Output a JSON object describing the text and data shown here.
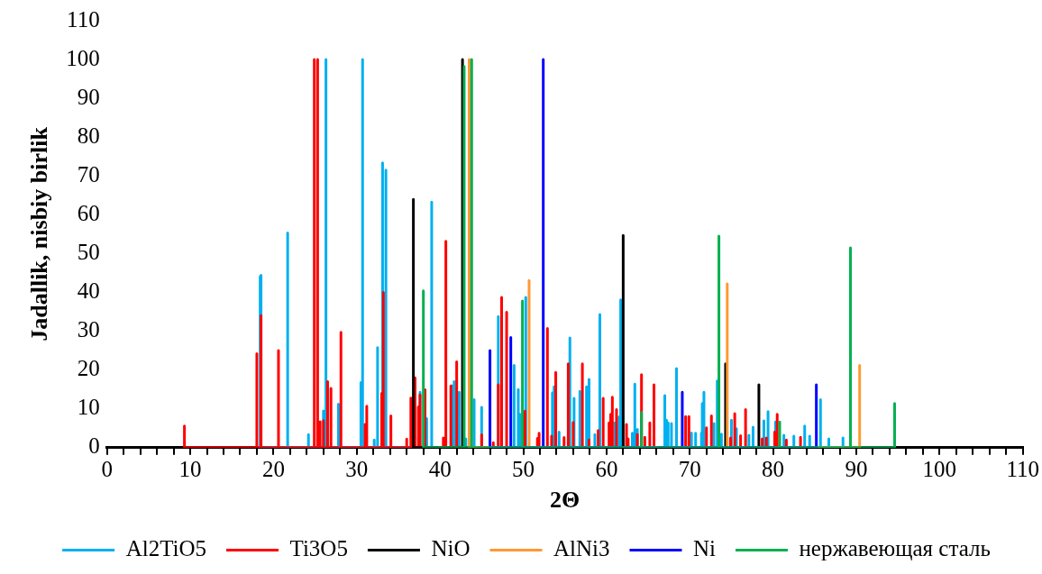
{
  "chart_data": {
    "type": "line",
    "xlabel": "2Θ",
    "ylabel": "Jadallik, nisbiy birlik",
    "xlim": [
      0,
      110
    ],
    "ylim": [
      0,
      110
    ],
    "xticks": [
      0,
      {
        "value": 2,
        "label": null
      },
      {
        "value": 4,
        "label": null
      },
      {
        "value": 6,
        "label": null
      },
      {
        "value": 8,
        "label": null
      },
      10,
      {
        "value": 12,
        "label": null
      },
      {
        "value": 14,
        "label": null
      },
      {
        "value": 16,
        "label": null
      },
      {
        "value": 18,
        "label": null
      },
      20,
      {
        "value": 22,
        "label": null
      },
      {
        "value": 24,
        "label": null
      },
      {
        "value": 26,
        "label": null
      },
      {
        "value": 28,
        "label": null
      },
      30,
      {
        "value": 32,
        "label": null
      },
      {
        "value": 34,
        "label": null
      },
      {
        "value": 36,
        "label": null
      },
      {
        "value": 38,
        "label": null
      },
      40,
      {
        "value": 42,
        "label": null
      },
      {
        "value": 44,
        "label": null
      },
      {
        "value": 46,
        "label": null
      },
      {
        "value": 48,
        "label": null
      },
      50,
      {
        "value": 52,
        "label": null
      },
      {
        "value": 54,
        "label": null
      },
      {
        "value": 56,
        "label": null
      },
      {
        "value": 58,
        "label": null
      },
      60,
      {
        "value": 62,
        "label": null
      },
      {
        "value": 64,
        "label": null
      },
      {
        "value": 66,
        "label": null
      },
      {
        "value": 68,
        "label": null
      },
      70,
      {
        "value": 72,
        "label": null
      },
      {
        "value": 74,
        "label": null
      },
      {
        "value": 76,
        "label": null
      },
      {
        "value": 78,
        "label": null
      },
      80,
      {
        "value": 82,
        "label": null
      },
      {
        "value": 84,
        "label": null
      },
      {
        "value": 86,
        "label": null
      },
      {
        "value": 88,
        "label": null
      },
      90,
      {
        "value": 92,
        "label": null
      },
      {
        "value": 94,
        "label": null
      },
      {
        "value": 96,
        "label": null
      },
      {
        "value": 98,
        "label": null
      },
      100,
      {
        "value": 102,
        "label": null
      },
      {
        "value": 104,
        "label": null
      },
      {
        "value": 106,
        "label": null
      },
      {
        "value": 108,
        "label": null
      },
      110
    ],
    "yticks": [
      0,
      10,
      20,
      30,
      40,
      50,
      60,
      70,
      80,
      90,
      100,
      110
    ],
    "grid": false,
    "legend": "bottom",
    "marker": "none",
    "series": [
      {
        "name": "Al2TiO5",
        "color": "#00b0f0",
        "x": [
          18.4,
          18.4,
          18.4,
          18.5,
          18.5,
          18.5,
          21.7,
          21.7,
          21.7,
          24.2,
          24.2,
          24.2,
          26.0,
          26.0,
          26.0,
          26.3,
          26.3,
          26.3,
          27.8,
          27.8,
          27.8,
          30.5,
          30.5,
          30.5,
          30.7,
          30.7,
          30.7,
          32.1,
          32.1,
          32.1,
          32.5,
          32.5,
          32.5,
          33.1,
          33.1,
          33.1,
          33.5,
          33.5,
          33.5,
          37.6,
          37.6,
          37.6,
          38.4,
          38.4,
          38.4,
          39.0,
          39.0,
          39.0,
          41.4,
          41.4,
          41.4,
          41.7,
          41.7,
          41.7,
          42.3,
          42.3,
          42.3,
          43.1,
          43.1,
          43.1,
          44.1,
          44.1,
          44.1,
          45.0,
          45.0,
          45.0,
          47.0,
          47.0,
          47.0,
          48.9,
          48.9,
          48.9,
          49.4,
          49.4,
          49.4,
          49.6,
          49.6,
          49.6,
          50.3,
          50.3,
          50.3,
          53.5,
          53.5,
          53.5,
          53.7,
          53.7,
          53.7,
          54.3,
          54.3,
          54.3,
          55.6,
          55.6,
          55.6,
          56.1,
          56.1,
          56.1,
          56.8,
          56.8,
          56.8,
          57.6,
          57.6,
          57.6,
          57.9,
          57.9,
          57.9,
          58.6,
          58.6,
          58.6,
          59.2,
          59.2,
          59.2,
          61.0,
          61.0,
          61.0,
          61.5,
          61.5,
          61.5,
          61.7,
          61.7,
          61.7,
          63.1,
          63.1,
          63.1,
          63.4,
          63.4,
          63.4,
          63.7,
          63.7,
          63.7,
          67.0,
          67.0,
          67.0,
          67.2,
          67.2,
          67.2,
          67.4,
          67.4,
          67.4,
          67.8,
          67.8,
          67.8,
          68.4,
          68.4,
          68.4,
          70.2,
          70.2,
          70.2,
          70.7,
          70.7,
          70.7,
          71.4,
          71.4,
          71.4,
          71.5,
          71.5,
          71.5,
          71.7,
          71.7,
          71.7,
          72.9,
          72.9,
          72.9,
          73.3,
          73.3,
          73.3,
          73.8,
          73.8,
          73.8,
          75.0,
          75.0,
          75.0,
          75.6,
          75.6,
          75.6,
          77.1,
          77.1,
          77.1,
          77.6,
          77.6,
          77.6,
          78.9,
          78.9,
          78.9,
          79.4,
          79.4,
          79.4,
          80.3,
          80.3,
          80.3,
          81.3,
          81.3,
          81.3,
          82.5,
          82.5,
          82.5,
          83.8,
          83.8,
          83.8,
          84.4,
          84.4,
          84.4,
          85.7,
          85.7,
          85.7,
          86.7,
          86.7,
          86.7,
          88.4,
          88.4,
          88.4
        ],
        "values": [
          0,
          44.1,
          0,
          0,
          44.4,
          0,
          0,
          55.3,
          0,
          0,
          3.4,
          0,
          0,
          9.5,
          0,
          0,
          100,
          0,
          0,
          11.2,
          0,
          0,
          16.8,
          0,
          0,
          100,
          0,
          0,
          2,
          0,
          0,
          25.8,
          0,
          0,
          73.4,
          0,
          0,
          71.5,
          0,
          0,
          14.3,
          0,
          0,
          7.5,
          0,
          0,
          63.3,
          0,
          0,
          16,
          0,
          0,
          17,
          0,
          0,
          14.3,
          0,
          0,
          2.3,
          0,
          0,
          12.4,
          0,
          0,
          10.4,
          0,
          0,
          33.8,
          0,
          0,
          21.2,
          0,
          0,
          15,
          0,
          0,
          8.6,
          0,
          0,
          38.7,
          0,
          0,
          14.1,
          0,
          0,
          15.7,
          0,
          0,
          4,
          0,
          0,
          28.3,
          0,
          0,
          12.7,
          0,
          0,
          14.5,
          0,
          0,
          15.7,
          0,
          0,
          17.6,
          0,
          0,
          3.4,
          0,
          0,
          34.3,
          0,
          0,
          6.4,
          0,
          0,
          7.9,
          0,
          0,
          38.1,
          0,
          0,
          3.7,
          0,
          0,
          16.4,
          0,
          0,
          4.7,
          0,
          0,
          13.4,
          0,
          0,
          7.1,
          0,
          0,
          6.4,
          0,
          0,
          6.2,
          0,
          0,
          20.4,
          0,
          0,
          3.8,
          0,
          0,
          3.7,
          0,
          0,
          3.8,
          0,
          0,
          11.4,
          0,
          0,
          14.3,
          0,
          0,
          6.2,
          0,
          0,
          17.2,
          0,
          0,
          3.5,
          0,
          0,
          7.1,
          0,
          0,
          4.9,
          0,
          0,
          3.2,
          0,
          0,
          5.3,
          0,
          0,
          6.9,
          0,
          0,
          9.3,
          0,
          0,
          6.6,
          0,
          0,
          3.2,
          0,
          0,
          3,
          0,
          0,
          5.6,
          0,
          0,
          3,
          0,
          0,
          12.4,
          0,
          0,
          2.3,
          0,
          0,
          2.5,
          0
        ]
      },
      {
        "name": "Ti3O5",
        "color": "#ff0000",
        "x": [
          9.3,
          9.3,
          9.3,
          18.0,
          18.0,
          18.0,
          18.5,
          18.5,
          18.5,
          20.6,
          20.6,
          20.6,
          24.9,
          24.9,
          24.9,
          25.3,
          25.3,
          25.3,
          25.6,
          25.6,
          25.6,
          26.0,
          26.0,
          26.0,
          26.5,
          26.5,
          26.5,
          26.9,
          26.9,
          26.9,
          28.1,
          28.1,
          28.1,
          31.0,
          31.0,
          31.0,
          31.2,
          31.2,
          31.2,
          33.0,
          33.0,
          33.0,
          33.2,
          33.2,
          33.2,
          34.1,
          34.1,
          34.1,
          36.0,
          36.0,
          36.0,
          36.5,
          36.5,
          36.5,
          37.0,
          37.0,
          37.0,
          37.4,
          37.4,
          37.4,
          37.6,
          37.6,
          37.6,
          38.2,
          38.2,
          38.2,
          40.4,
          40.4,
          40.4,
          40.7,
          40.7,
          40.7,
          41.3,
          41.3,
          41.3,
          42.0,
          42.0,
          42.0,
          45.0,
          45.0,
          45.0,
          46.4,
          46.4,
          46.4,
          47.0,
          47.0,
          47.0,
          47.4,
          47.4,
          47.4,
          48.0,
          48.0,
          48.0,
          50.2,
          50.2,
          50.2,
          51.7,
          51.7,
          51.7,
          51.9,
          51.9,
          51.9,
          52.9,
          52.9,
          52.9,
          53.4,
          53.4,
          53.4,
          53.9,
          53.9,
          53.9,
          54.9,
          54.9,
          54.9,
          55.4,
          55.4,
          55.4,
          56.0,
          56.0,
          56.0,
          57.1,
          57.1,
          57.1,
          57.9,
          57.9,
          57.9,
          59.0,
          59.0,
          59.0,
          59.6,
          59.6,
          59.6,
          60.3,
          60.3,
          60.3,
          60.5,
          60.5,
          60.5,
          60.7,
          60.7,
          60.7,
          61.2,
          61.2,
          61.2,
          62.4,
          62.4,
          62.4,
          62.6,
          62.6,
          62.6,
          63.7,
          63.7,
          63.7,
          64.2,
          64.2,
          64.2,
          64.6,
          64.6,
          64.6,
          65.2,
          65.2,
          65.2,
          65.7,
          65.7,
          65.7,
          69.5,
          69.5,
          69.5,
          69.9,
          69.9,
          69.9,
          72.0,
          72.0,
          72.0,
          72.6,
          72.6,
          72.6,
          74.9,
          74.9,
          74.9,
          75.4,
          75.4,
          75.4,
          76.1,
          76.1,
          76.1,
          76.7,
          76.7,
          76.7,
          78.7,
          78.7,
          78.7,
          79.2,
          79.2,
          79.2,
          80.2,
          80.2,
          80.2,
          80.5,
          80.5,
          80.5,
          81.6,
          81.6,
          81.6,
          83.3,
          83.3,
          83.3
        ],
        "values": [
          0,
          5.6,
          0,
          0,
          24.2,
          0,
          0,
          34,
          0,
          0,
          25,
          0,
          0,
          100,
          0,
          0,
          100,
          0,
          0,
          6.7,
          0,
          0,
          7,
          0,
          0,
          17,
          0,
          0,
          15.3,
          0,
          0,
          29.7,
          0,
          0,
          6,
          0,
          0,
          10.7,
          0,
          0,
          14,
          0,
          0,
          40,
          0,
          0,
          8.2,
          0,
          0,
          2.2,
          0,
          0,
          12.8,
          0,
          0,
          18,
          0,
          0,
          10.5,
          0,
          0,
          13.6,
          0,
          0,
          14.9,
          0,
          0,
          2.5,
          0,
          0,
          53.2,
          0,
          0,
          15.9,
          0,
          0,
          22.1,
          0,
          0,
          3.3,
          0,
          0,
          1.3,
          0,
          0,
          16.2,
          0,
          0,
          38.7,
          0,
          0,
          34.9,
          0,
          0,
          9.4,
          0,
          0,
          2.4,
          0,
          0,
          3.7,
          0,
          0,
          30.7,
          0,
          0,
          3,
          0,
          0,
          19.4,
          0,
          0,
          2.6,
          0,
          0,
          21.6,
          0,
          0,
          6.5,
          0,
          0,
          21.6,
          0,
          0,
          2,
          0,
          0,
          4.4,
          0,
          0,
          12.7,
          0,
          0,
          6.4,
          0,
          0,
          8.6,
          0,
          0,
          13,
          0,
          0,
          9.8,
          0,
          0,
          6,
          0,
          0,
          2.3,
          0,
          0,
          3.4,
          0,
          0,
          18.8,
          0,
          0,
          2.7,
          0,
          0,
          6.4,
          0,
          0,
          16.2,
          0,
          0,
          8,
          0,
          0,
          8,
          0,
          0,
          5.1,
          0,
          0,
          8.2,
          0,
          0,
          2.5,
          0,
          0,
          8.8,
          0,
          0,
          3.1,
          0,
          0,
          9.8,
          0,
          0,
          2.3,
          0,
          0,
          2.5,
          0,
          0,
          4,
          0,
          0,
          8.6,
          0,
          0,
          2,
          0,
          0,
          2.7,
          0
        ]
      },
      {
        "name": "NiO",
        "color": "#000000",
        "x": [
          36.8,
          36.8,
          36.8,
          42.7,
          42.7,
          42.7,
          62.0,
          62.0,
          62.0,
          74.3,
          74.3,
          74.3,
          78.3,
          78.3,
          78.3
        ],
        "values": [
          0,
          64,
          0,
          0,
          100,
          0,
          0,
          54.7,
          0,
          0,
          21.6,
          0,
          0,
          16.2,
          0
        ]
      },
      {
        "name": "AlNi3",
        "color": "#ff9933",
        "x": [
          43.5,
          43.5,
          43.5,
          50.7,
          50.7,
          50.7,
          74.5,
          74.5,
          74.5,
          90.4,
          90.4,
          90.4
        ],
        "values": [
          0,
          100,
          0,
          0,
          43.1,
          0,
          0,
          42.2,
          0,
          0,
          21.2,
          0
        ]
      },
      {
        "name": "Ni",
        "color": "#0000ff",
        "x": [
          46.0,
          46.0,
          46.0,
          48.5,
          48.5,
          48.5,
          52.4,
          52.4,
          52.4,
          69.1,
          69.1,
          69.1,
          85.2,
          85.2,
          85.2
        ],
        "values": [
          0,
          25,
          0,
          0,
          28.4,
          0,
          0,
          100,
          0,
          0,
          14.3,
          0,
          0,
          16.2,
          0
        ]
      },
      {
        "name": "нержавеющая сталь",
        "color": "#00b050",
        "x": [
          38.0,
          38.0,
          38.0,
          42.9,
          42.9,
          42.9,
          43.8,
          43.8,
          43.8,
          49.9,
          49.9,
          49.9,
          64.2,
          64.2,
          64.2,
          73.5,
          73.5,
          73.5,
          80.8,
          80.8,
          80.8,
          89.3,
          89.3,
          89.3,
          94.6,
          94.6,
          94.6
        ],
        "values": [
          0,
          40.4,
          0,
          0,
          98.2,
          0,
          0,
          100,
          0,
          0,
          37.8,
          0,
          0,
          9.1,
          0,
          0,
          54.5,
          0,
          0,
          6.6,
          0,
          0,
          51.5,
          0,
          0,
          11.4,
          0
        ]
      }
    ]
  }
}
